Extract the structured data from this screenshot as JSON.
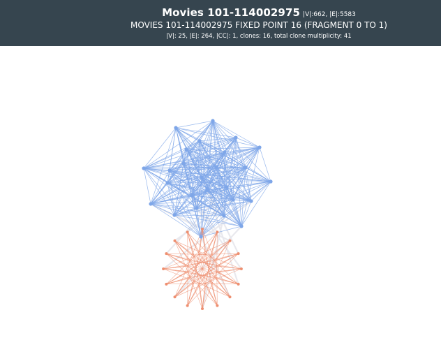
{
  "header": {
    "title": "Movies 101-114002975",
    "graph_stats": "|V|:662, |E|:5583",
    "subtitle": "MOVIES 101-114002975 FIXED POINT 16 (FRAGMENT 0 TO 1)",
    "details": "|V|: 25, |E|: 264, |CC|: 1, clones: 16, total clone multiplicity: 41"
  },
  "colors": {
    "header_bg": "#36454f",
    "fragment0": "#7ea6e8",
    "fragment1": "#ee8f70",
    "crossEdge": "#e7e7ec"
  },
  "graph": {
    "vertex_count": 25,
    "edge_count": 264,
    "connected_components": 1,
    "clones": 16,
    "total_clone_multiplicity": 41
  }
}
